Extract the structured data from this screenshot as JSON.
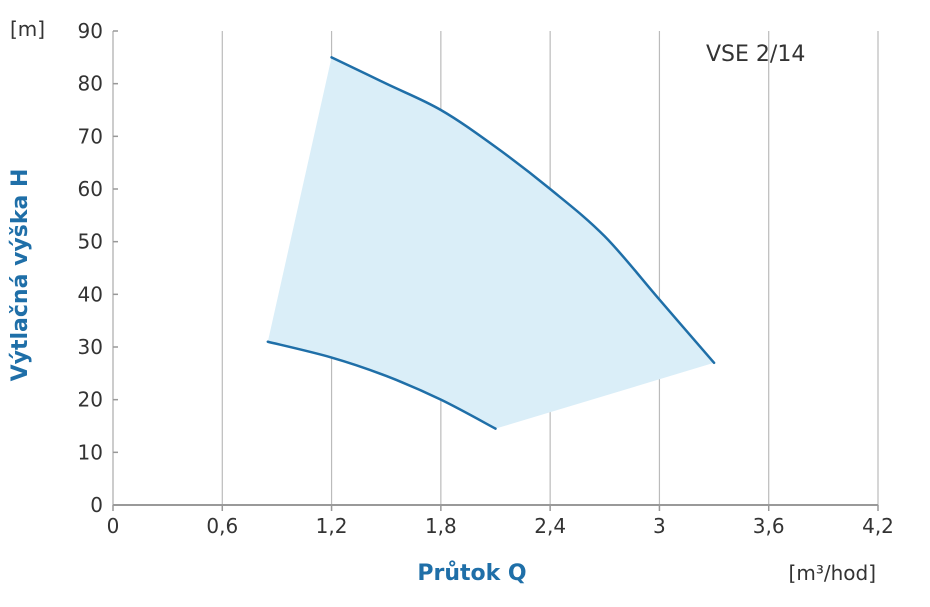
{
  "chart_data": {
    "type": "area",
    "model_label": "VSE 2/14",
    "y_unit": "[m]",
    "x_unit": "[m³/hod]",
    "xlabel": "Průtok Q",
    "ylabel": "Výtlačná výška H",
    "xlim": [
      0,
      4.2
    ],
    "ylim": [
      0,
      90
    ],
    "x_ticks": [
      "0",
      "0,6",
      "1,2",
      "1,8",
      "2,4",
      "3",
      "3,6",
      "4,2"
    ],
    "x_tick_values": [
      0,
      0.6,
      1.2,
      1.8,
      2.4,
      3.0,
      3.6,
      4.2
    ],
    "y_ticks": [
      "0",
      "10",
      "20",
      "30",
      "40",
      "50",
      "60",
      "70",
      "80",
      "90"
    ],
    "y_tick_values": [
      0,
      10,
      20,
      30,
      40,
      50,
      60,
      70,
      80,
      90
    ],
    "grid": "vertical",
    "series": [
      {
        "role": "upper-curve",
        "x": [
          1.2,
          1.5,
          1.8,
          2.1,
          2.4,
          2.7,
          3.0,
          3.3
        ],
        "y": [
          85,
          80,
          75,
          68,
          60,
          51,
          39,
          27
        ]
      },
      {
        "role": "lower-curve",
        "x": [
          0.85,
          1.2,
          1.5,
          1.8,
          2.1
        ],
        "y": [
          31,
          28,
          24.5,
          20,
          14.5
        ]
      }
    ],
    "envelope": {
      "left_edge": [
        [
          0.85,
          31
        ],
        [
          1.2,
          85
        ]
      ],
      "right_edge": [
        [
          2.1,
          14.5
        ],
        [
          3.3,
          27
        ]
      ]
    },
    "colors": {
      "curve": "#1f6fa8",
      "fill": "#daeef8",
      "grid": "#bbbbbb",
      "axis_title": "#1f6fa8"
    }
  }
}
